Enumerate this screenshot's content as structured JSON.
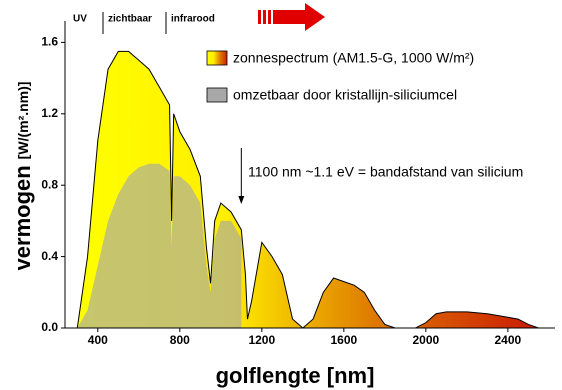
{
  "chart_data": {
    "type": "area",
    "band_labels": [
      "UV",
      "zichtbaar",
      "infrarood"
    ],
    "annotation": "1100 nm ~1.1 eV = bandafstand van silicium",
    "annotation_x": 1100,
    "xlabel": "golflengte [nm]",
    "ylabel": "vermogen",
    "yunit": "[W/(m².nm)]",
    "xlim": [
      240,
      2630
    ],
    "ylim": [
      0,
      1.72
    ],
    "xticks": [
      400,
      800,
      1200,
      1600,
      2000,
      2400
    ],
    "yticks": [
      {
        "value": 0,
        "label": "0.0"
      },
      0.4,
      0.8,
      1.2,
      1.6
    ],
    "x": [
      300,
      350,
      400,
      450,
      500,
      550,
      600,
      650,
      700,
      750,
      760,
      770,
      800,
      850,
      900,
      930,
      950,
      970,
      1000,
      1050,
      1100,
      1120,
      1130,
      1150,
      1200,
      1250,
      1300,
      1350,
      1400,
      1450,
      1500,
      1550,
      1600,
      1650,
      1700,
      1750,
      1800,
      1850,
      1950,
      2000,
      2050,
      2100,
      2200,
      2300,
      2400,
      2450,
      2500,
      2550
    ],
    "series": [
      {
        "name": "zonnespectrum (AM1.5-G, 1000 W/m²)",
        "gradient": [
          "#ffff00",
          "#ffee00",
          "#dd7700",
          "#cc2200"
        ],
        "values": [
          0,
          0.4,
          1.05,
          1.45,
          1.55,
          1.55,
          1.5,
          1.45,
          1.35,
          1.25,
          0.6,
          1.2,
          1.1,
          1.0,
          0.85,
          0.45,
          0.25,
          0.6,
          0.7,
          0.65,
          0.55,
          0.3,
          0.05,
          0.15,
          0.48,
          0.4,
          0.3,
          0.05,
          0,
          0.05,
          0.2,
          0.28,
          0.26,
          0.24,
          0.2,
          0.1,
          0.02,
          0,
          0,
          0.03,
          0.08,
          0.09,
          0.09,
          0.08,
          0.06,
          0.05,
          0.02,
          0
        ]
      },
      {
        "name": "omzetbaar door kristallijn-siliciumcel",
        "color": "#a8a8a8",
        "values": [
          0,
          0.1,
          0.35,
          0.6,
          0.75,
          0.85,
          0.9,
          0.92,
          0.92,
          0.88,
          0.45,
          0.85,
          0.85,
          0.8,
          0.7,
          0.35,
          0.2,
          0.5,
          0.6,
          0.6,
          0.5,
          null,
          null,
          null,
          null,
          null,
          null,
          null,
          null,
          null,
          null,
          null,
          null,
          null,
          null,
          null,
          null,
          null,
          null,
          null,
          null,
          null,
          null,
          null,
          null,
          null,
          null,
          null
        ]
      }
    ]
  }
}
